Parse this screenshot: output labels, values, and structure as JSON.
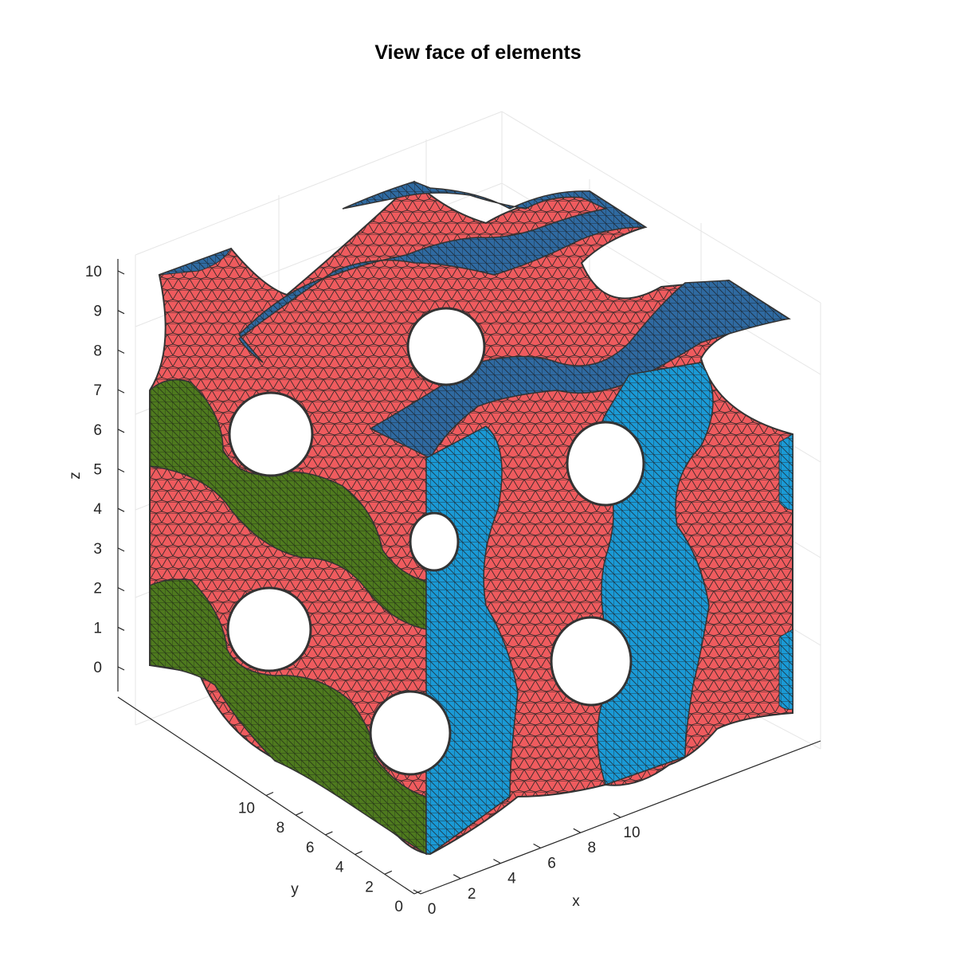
{
  "figure": {
    "title": "View face of elements",
    "xlabel": "x",
    "ylabel": "y",
    "zlabel": "z",
    "x_ticks": [
      "0",
      "2",
      "4",
      "6",
      "8",
      "10"
    ],
    "y_ticks": [
      "0",
      "2",
      "4",
      "6",
      "8",
      "10"
    ],
    "z_ticks": [
      "0",
      "1",
      "2",
      "3",
      "4",
      "5",
      "6",
      "7",
      "8",
      "9",
      "10"
    ],
    "colors": {
      "lattice_surface": "#ef5b5e",
      "face_x_max": "#1a9ad6",
      "face_y_max": "#4e7a1e",
      "face_z_max": "#2f6aa1",
      "mesh_edges": "#333333",
      "grid": "#e6e6e6",
      "axis": "#262626"
    }
  }
}
